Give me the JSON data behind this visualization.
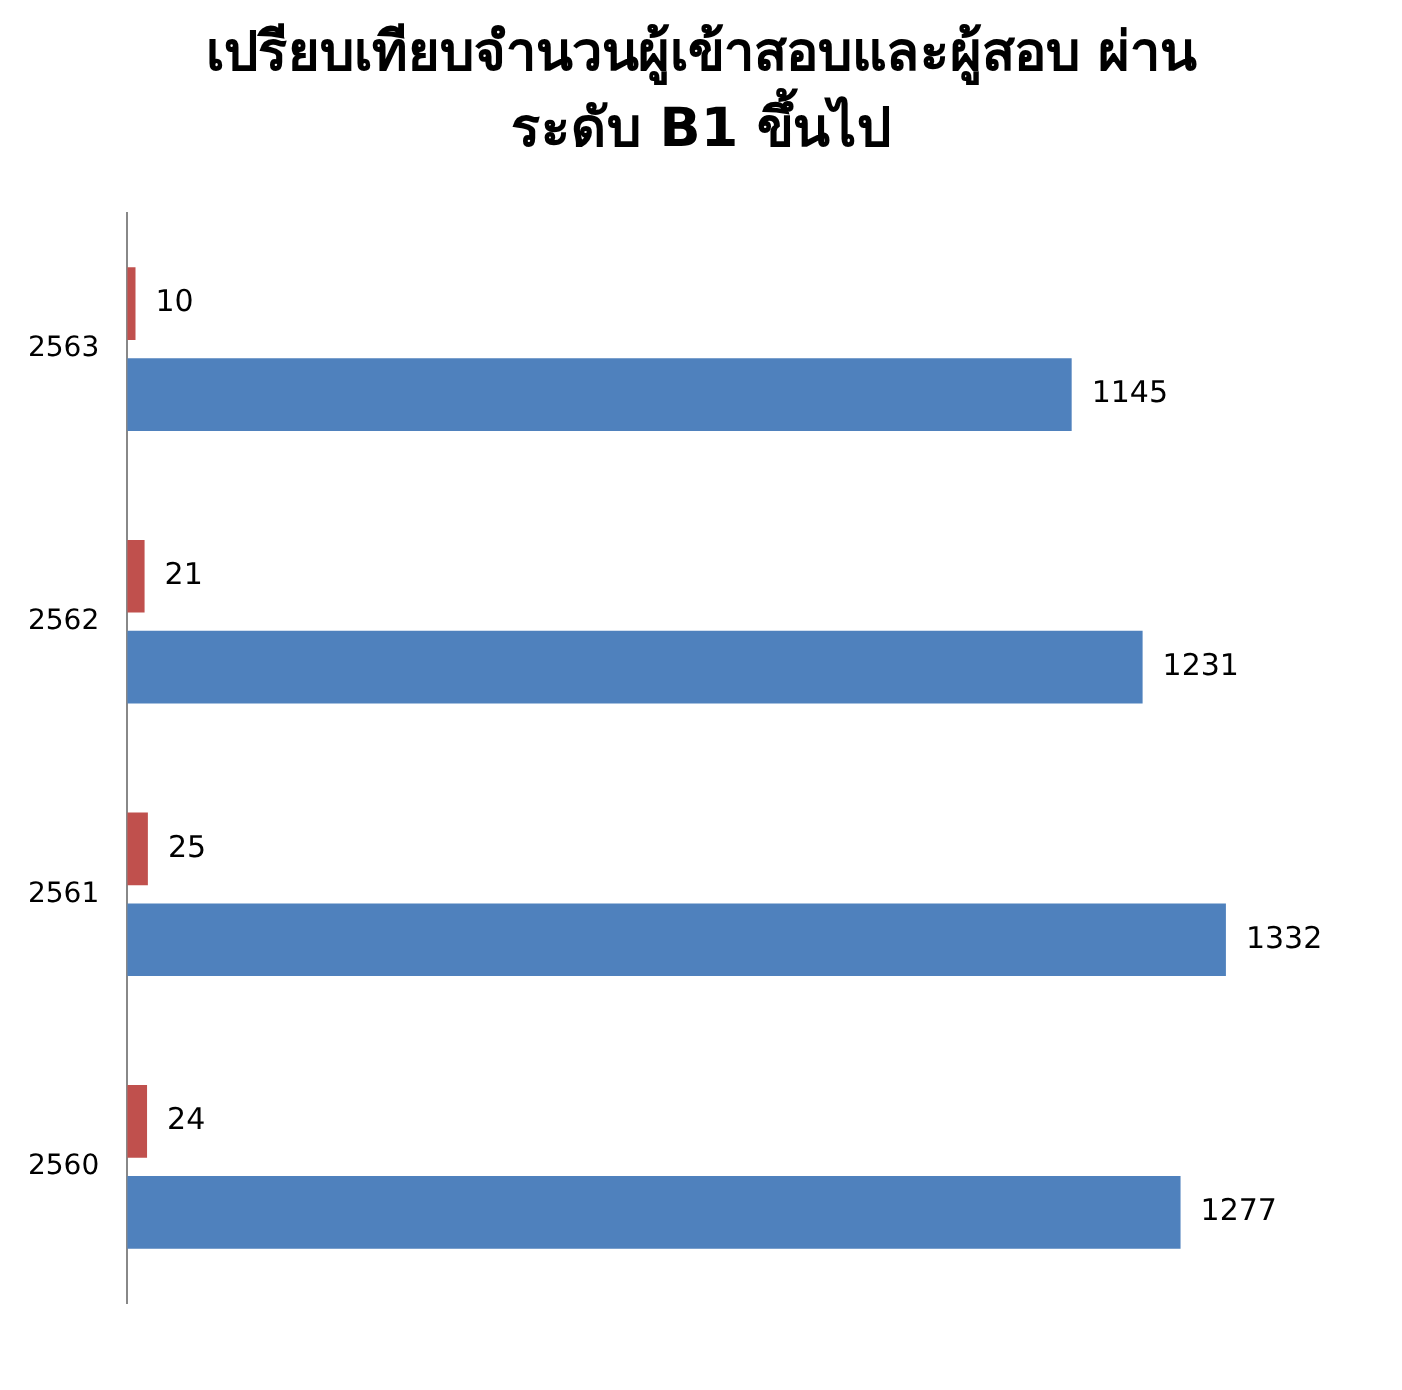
{
  "chart_data": {
    "type": "bar",
    "orientation": "horizontal",
    "title": "เปรียบเทียบจำนวนผู้เข้าสอบและผู้สอบ ผ่านระดับ B1 ขึ้นไป",
    "categories": [
      "2563",
      "2562",
      "2561",
      "2560"
    ],
    "series": [
      {
        "color": "#c0504d",
        "values": [
          10,
          21,
          25,
          24
        ]
      },
      {
        "color": "#4f81bd",
        "values": [
          1145,
          1231,
          1332,
          1277
        ]
      }
    ],
    "data_labels": true,
    "grid": false,
    "legend": false
  }
}
